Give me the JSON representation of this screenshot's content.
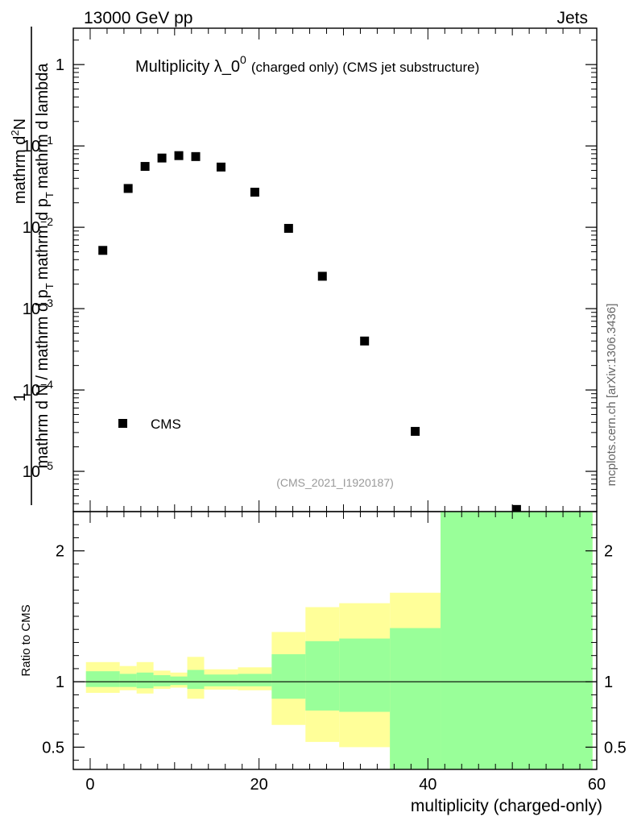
{
  "header": {
    "left": "13000 GeV pp",
    "right": "Jets"
  },
  "side_label": "mcplots.cern.ch [arXiv:1306.3436]",
  "chart_data": [
    {
      "type": "scatter",
      "title": "Multiplicity λ_0",
      "title_superscript": "0",
      "subtitle": "(charged only) (CMS jet substructure)",
      "analysis_id": "(CMS_2021_I1920187)",
      "ylabel_numerator": "mathrm d N / mathrm d p_T mathrm d lambda",
      "ylabel_denominator": "mathrm d N / mathrm d p_T",
      "ylabel_fraction": "1",
      "ylabel_parts": {
        "one": "1",
        "numerator": "mathrm d²N",
        "numerator_left": "mathrm d",
        "numerator_right": "N",
        "numerator_exp": "2",
        "den1": "mathrm d p",
        "den1_sub": "T",
        "den2": "mathrm d lambda",
        "den_left": "mathrm d N / mathrm d p",
        "den_left_sub": "T",
        "den_right": "mathrm d p",
        "den_right_sub": "T",
        "den_right_tail": "mathrm d lambda"
      },
      "yscale": "log",
      "ylim": [
        3.2e-06,
        2.8
      ],
      "xlim": [
        -2,
        60
      ],
      "y_ticks": [
        {
          "value": 1,
          "label": "1",
          "exp": ""
        },
        {
          "value": 0.1,
          "label": "10",
          "exp": "−1"
        },
        {
          "value": 0.01,
          "label": "10",
          "exp": "−2"
        },
        {
          "value": 0.001,
          "label": "10",
          "exp": "−3"
        },
        {
          "value": 0.0001,
          "label": "10",
          "exp": "−4"
        },
        {
          "value": 1e-05,
          "label": "10",
          "exp": "−5"
        }
      ],
      "legend": {
        "entries": [
          "CMS"
        ],
        "placement": "bottom-left"
      },
      "series": [
        {
          "name": "CMS",
          "marker": "square",
          "color": "#000000",
          "x": [
            1.5,
            4.5,
            6.5,
            8.5,
            10.5,
            12.5,
            15.5,
            19.5,
            23.5,
            27.5,
            32.5,
            38.5,
            50.5
          ],
          "y": [
            0.0052,
            0.03,
            0.056,
            0.071,
            0.076,
            0.074,
            0.055,
            0.027,
            0.0097,
            0.0025,
            0.0004,
            3.1e-05,
            3.4e-06
          ]
        }
      ]
    },
    {
      "type": "area",
      "ylabel": "Ratio to CMS",
      "xlabel": "multiplicity (charged-only)",
      "xlim": [
        -2,
        60
      ],
      "ylim": [
        0.33,
        2.3
      ],
      "x_ticks": [
        0,
        20,
        40,
        60
      ],
      "y_ticks": [
        0.5,
        1,
        2
      ],
      "reference_line": 1,
      "colors": {
        "outer_band": "#ffff99",
        "inner_band": "#99ff99",
        "line": "#000000"
      },
      "bins": [
        {
          "x": [
            -0.5,
            3.5
          ],
          "outer": [
            0.915,
            1.15
          ],
          "inner": [
            0.96,
            1.08
          ]
        },
        {
          "x": [
            3.5,
            5.5
          ],
          "outer": [
            0.935,
            1.12
          ],
          "inner": [
            0.96,
            1.06
          ]
        },
        {
          "x": [
            5.5,
            7.5
          ],
          "outer": [
            0.91,
            1.15
          ],
          "inner": [
            0.95,
            1.07
          ]
        },
        {
          "x": [
            7.5,
            9.5
          ],
          "outer": [
            0.945,
            1.085
          ],
          "inner": [
            0.965,
            1.05
          ]
        },
        {
          "x": [
            9.5,
            11.5
          ],
          "outer": [
            0.955,
            1.07
          ],
          "inner": [
            0.975,
            1.04
          ]
        },
        {
          "x": [
            11.5,
            13.5
          ],
          "outer": [
            0.87,
            1.19
          ],
          "inner": [
            0.945,
            1.09
          ]
        },
        {
          "x": [
            13.5,
            17.5
          ],
          "outer": [
            0.94,
            1.095
          ],
          "inner": [
            0.965,
            1.055
          ]
        },
        {
          "x": [
            17.5,
            21.5
          ],
          "outer": [
            0.935,
            1.11
          ],
          "inner": [
            0.965,
            1.06
          ]
        },
        {
          "x": [
            21.5,
            25.5
          ],
          "outer": [
            0.67,
            1.38
          ],
          "inner": [
            0.87,
            1.21
          ]
        },
        {
          "x": [
            25.5,
            29.5
          ],
          "outer": [
            0.54,
            1.57
          ],
          "inner": [
            0.78,
            1.31
          ]
        },
        {
          "x": [
            29.5,
            35.5
          ],
          "outer": [
            0.5,
            1.6
          ],
          "inner": [
            0.77,
            1.33
          ]
        },
        {
          "x": [
            35.5,
            41.5
          ],
          "outer": [
            0.33,
            1.68
          ],
          "inner": [
            0.33,
            1.41
          ]
        },
        {
          "x": [
            41.5,
            59.5
          ],
          "outer": [
            0.33,
            2.3
          ],
          "inner": [
            0.33,
            2.3
          ]
        }
      ]
    }
  ]
}
